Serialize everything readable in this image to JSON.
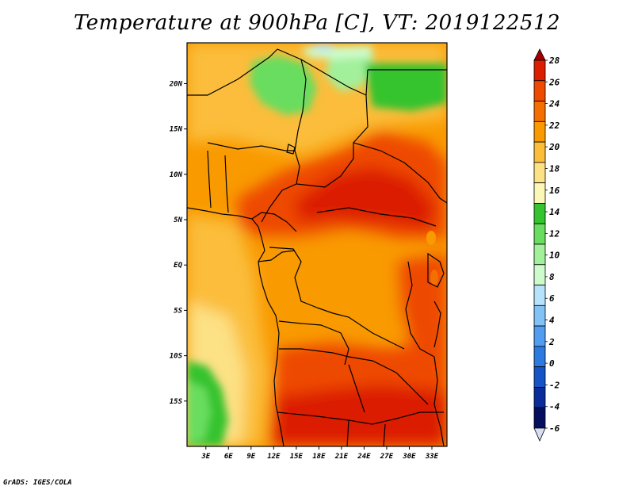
{
  "title": "Temperature at 900hPa [C], VT: 2019122512",
  "credit": "GrADS: IGES/COLA",
  "lat_ticks": [
    {
      "label": "20N",
      "value": 20
    },
    {
      "label": "15N",
      "value": 15
    },
    {
      "label": "10N",
      "value": 10
    },
    {
      "label": "5N",
      "value": 5
    },
    {
      "label": "EQ",
      "value": 0
    },
    {
      "label": "5S",
      "value": -5
    },
    {
      "label": "10S",
      "value": -10
    },
    {
      "label": "15S",
      "value": -15
    }
  ],
  "lon_ticks": [
    {
      "label": "3E",
      "value": 3
    },
    {
      "label": "6E",
      "value": 6
    },
    {
      "label": "9E",
      "value": 9
    },
    {
      "label": "12E",
      "value": 12
    },
    {
      "label": "15E",
      "value": 15
    },
    {
      "label": "18E",
      "value": 18
    },
    {
      "label": "21E",
      "value": 21
    },
    {
      "label": "24E",
      "value": 24
    },
    {
      "label": "27E",
      "value": 27
    },
    {
      "label": "30E",
      "value": 30
    },
    {
      "label": "33E",
      "value": 33
    }
  ],
  "lon_range": [
    0.5,
    35
  ],
  "lat_range": [
    -20,
    24.5
  ],
  "colorbar": {
    "labels": [
      "28",
      "26",
      "24",
      "22",
      "20",
      "18",
      "16",
      "14",
      "12",
      "10",
      "8",
      "6",
      "4",
      "2",
      "0",
      "-2",
      "-4",
      "-6"
    ],
    "colors": [
      "#a20000",
      "#dc1f00",
      "#ee4a00",
      "#f56f00",
      "#f99a00",
      "#fbbd3a",
      "#fde185",
      "#fbf7b7",
      "#35c32e",
      "#69dd5f",
      "#a2f09b",
      "#cefbcb",
      "#b7e2fb",
      "#83c2f5",
      "#529df0",
      "#2c7ae0",
      "#1553c6",
      "#0b2c9b",
      "#060f5e"
    ],
    "under_color": "#d9dcf4"
  }
}
